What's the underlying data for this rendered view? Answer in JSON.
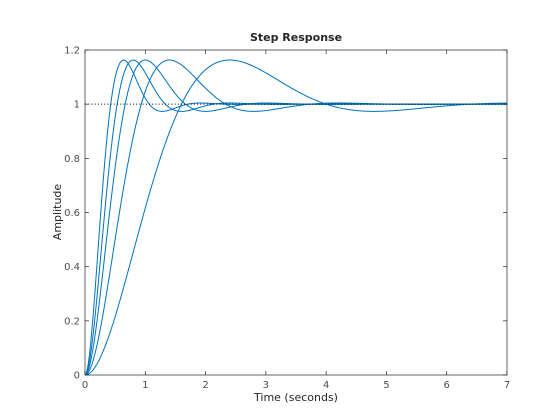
{
  "chart_data": {
    "type": "line",
    "title": "Step Response",
    "xlabel": "Time (seconds)",
    "ylabel": "Amplitude",
    "xlim": [
      0,
      7
    ],
    "ylim": [
      0,
      1.2
    ],
    "xticks": [
      0,
      1,
      2,
      3,
      4,
      5,
      6,
      7
    ],
    "yticks": [
      0,
      0.2,
      0.4,
      0.6,
      0.8,
      1,
      1.2
    ],
    "xtick_labels": [
      "0",
      "1",
      "2",
      "3",
      "4",
      "5",
      "6",
      "7"
    ],
    "ytick_labels": [
      "0",
      "0.2",
      "0.4",
      "0.6",
      "0.8",
      "1",
      "1.2"
    ],
    "grid": false,
    "reference_line": {
      "y": 1,
      "style": "dotted",
      "color": "#000000"
    },
    "series_color": "#0072bd",
    "series": [
      {
        "peak_time": 0.64,
        "peak_value": 1.163,
        "overshoot": 0.163,
        "settles_to": 1.0
      },
      {
        "peak_time": 0.8,
        "peak_value": 1.163,
        "overshoot": 0.163,
        "settles_to": 1.0
      },
      {
        "peak_time": 1.0,
        "peak_value": 1.163,
        "overshoot": 0.163,
        "settles_to": 1.0
      },
      {
        "peak_time": 1.4,
        "peak_value": 1.163,
        "overshoot": 0.163,
        "settles_to": 1.0
      },
      {
        "peak_time": 2.4,
        "peak_value": 1.163,
        "overshoot": 0.163,
        "settles_to": 1.0
      }
    ]
  }
}
